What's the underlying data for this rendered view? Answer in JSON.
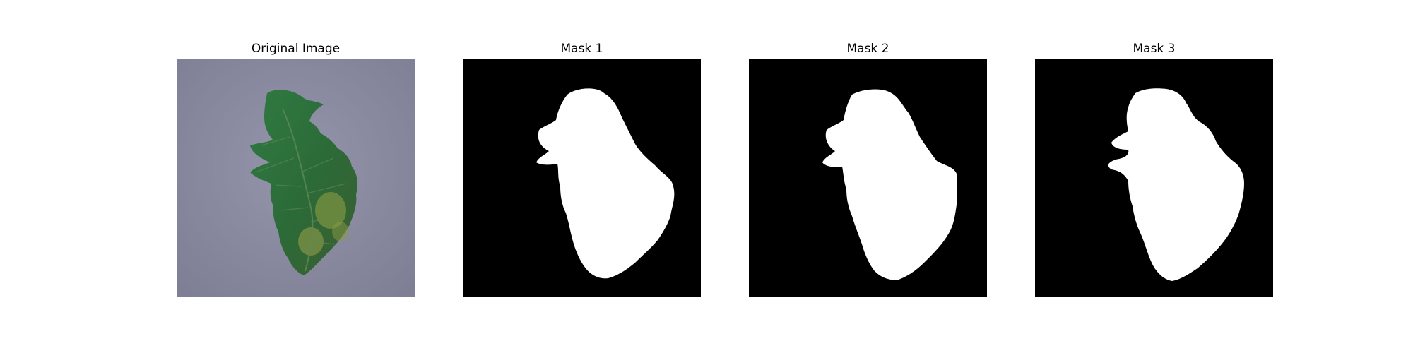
{
  "figure": {
    "panels": [
      {
        "title": "Original Image",
        "content": "photo-leaf",
        "icon": "tomato-leaf-photo"
      },
      {
        "title": "Mask 1",
        "content": "binary-mask",
        "icon": "leaf-mask"
      },
      {
        "title": "Mask 2",
        "content": "binary-mask",
        "icon": "leaf-mask"
      },
      {
        "title": "Mask 3",
        "content": "binary-mask",
        "icon": "leaf-mask"
      }
    ],
    "colors": {
      "mask_background": "#000000",
      "mask_foreground": "#ffffff",
      "photo_background": "#8a8aa0",
      "leaf_green": "#2e6a3a",
      "leaf_yellow": "#9aa24a"
    }
  }
}
